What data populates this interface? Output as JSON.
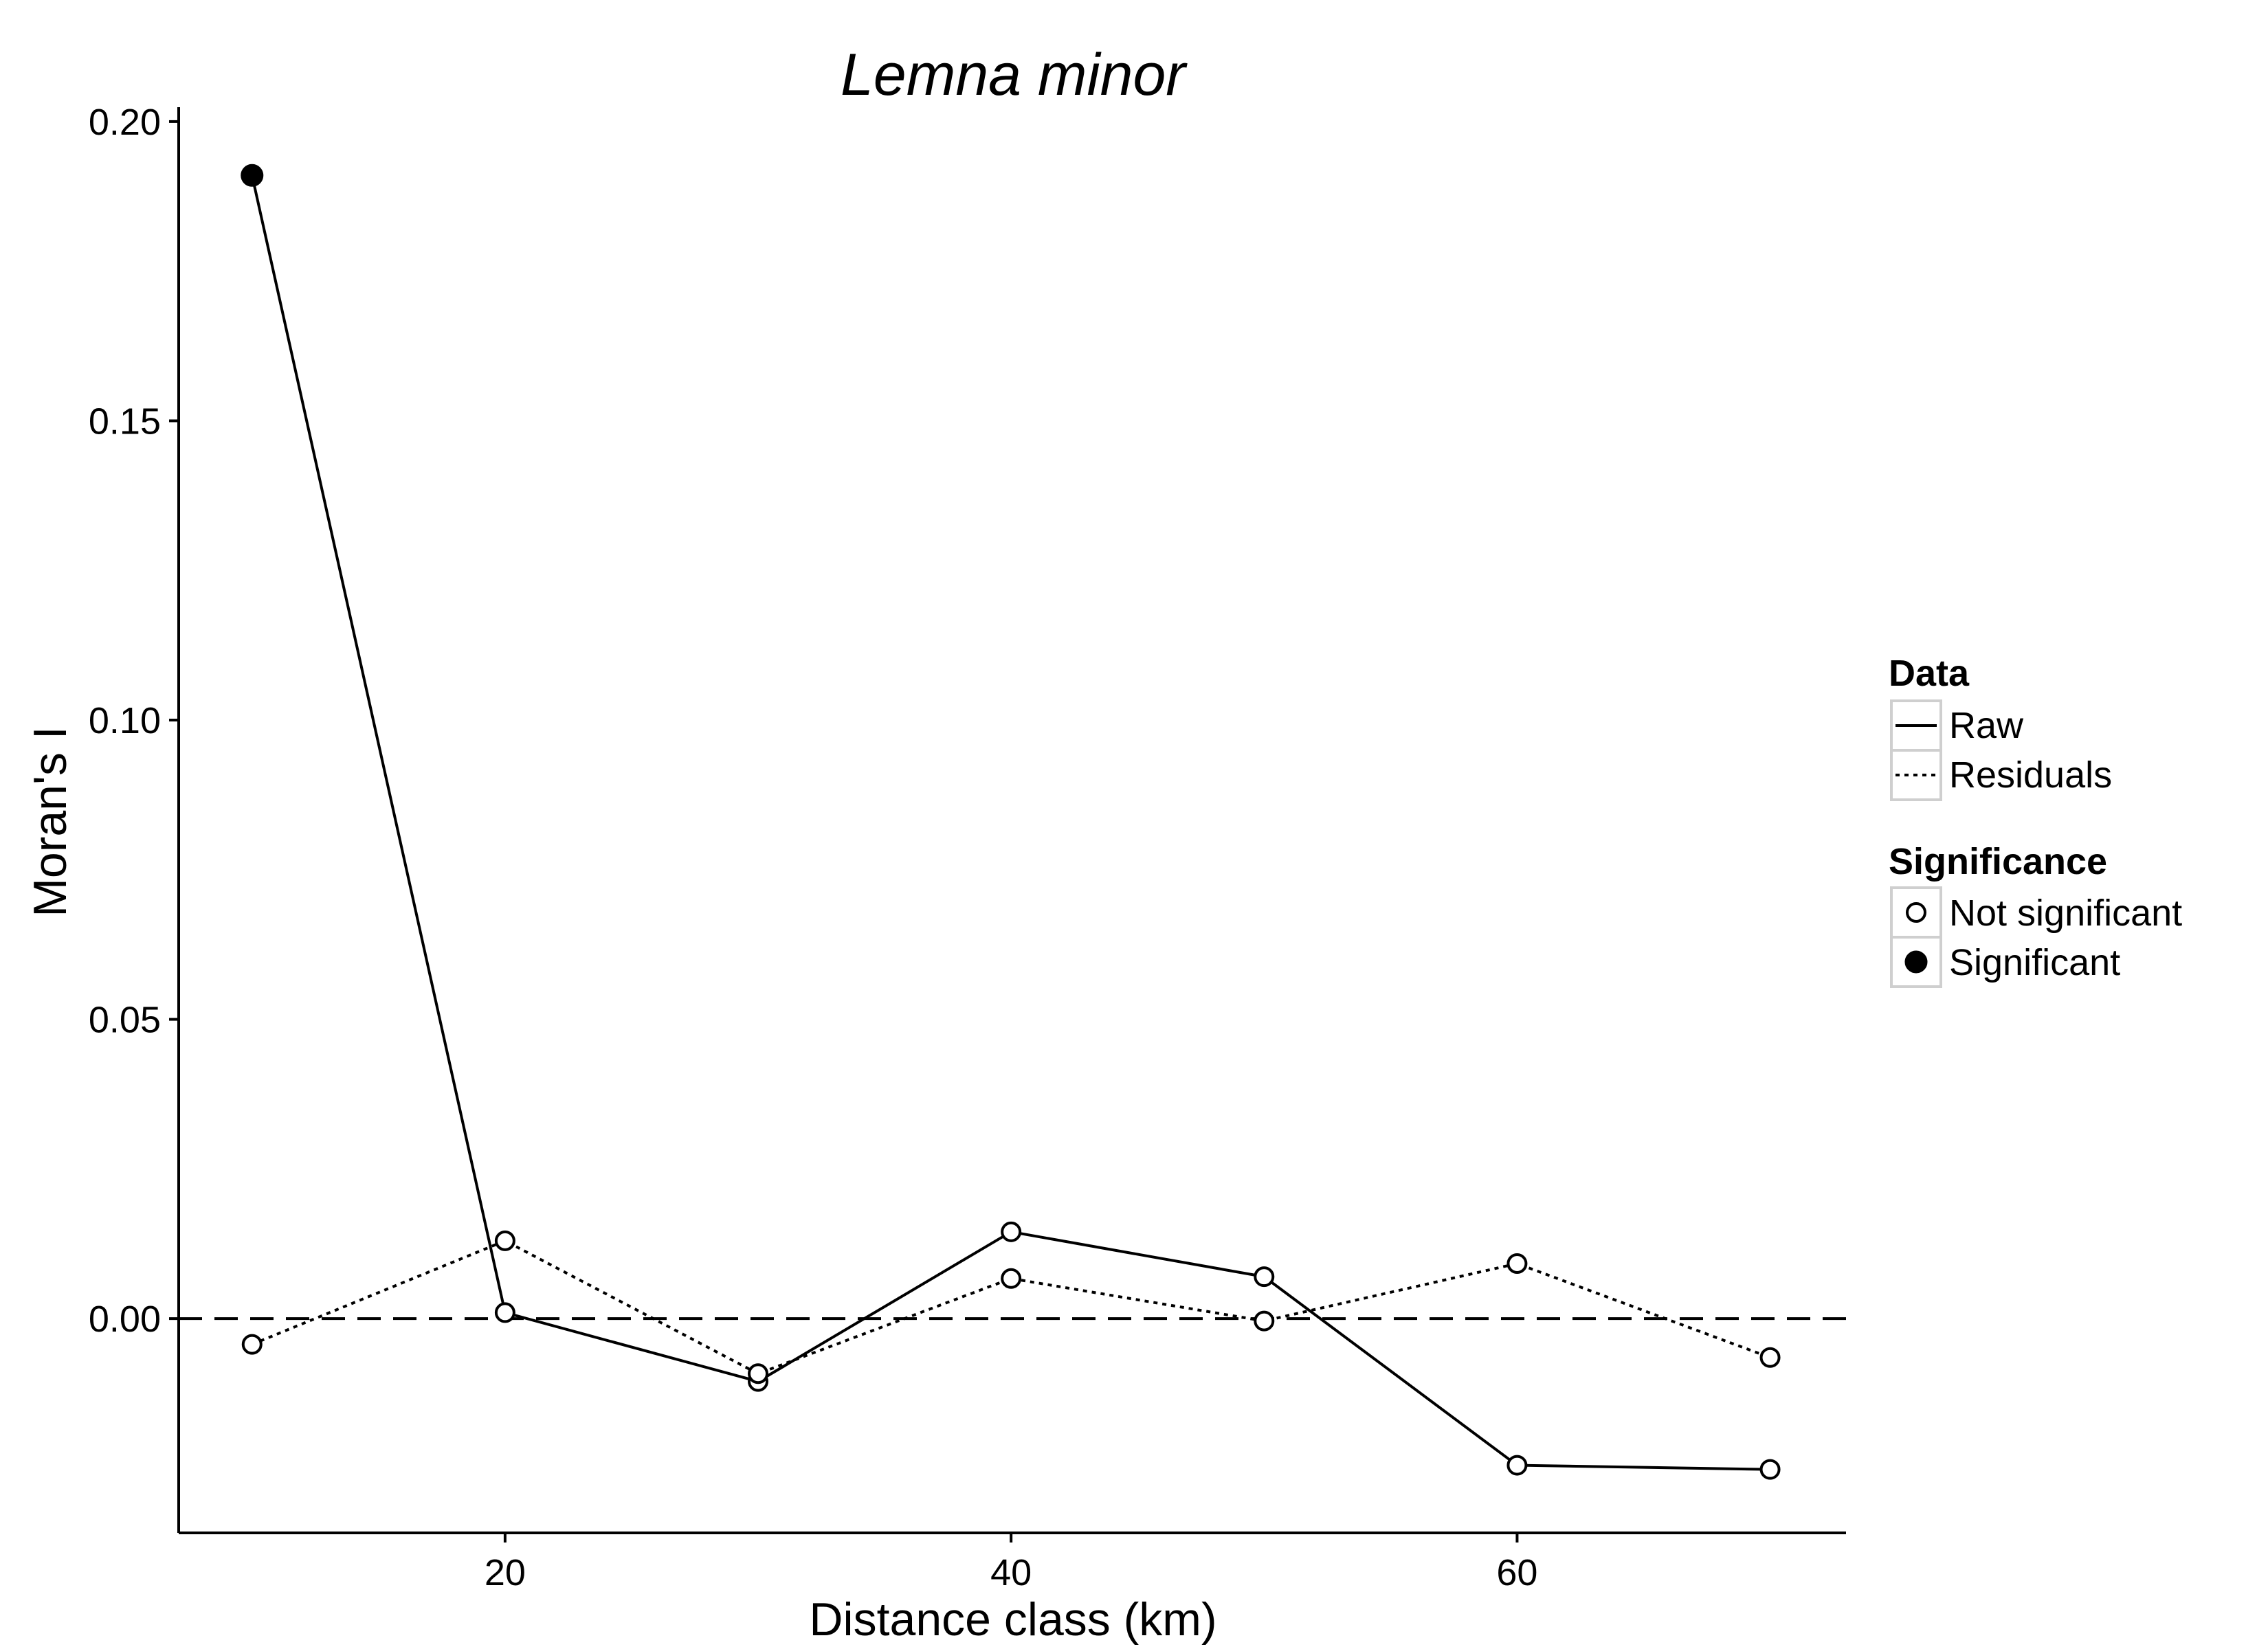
{
  "chart_data": {
    "type": "line",
    "title": "Lemna minor",
    "xlabel": "Distance class (km)",
    "ylabel": "Moran's I",
    "x_ticks": [
      20,
      40,
      60
    ],
    "x_tick_labels": [
      "20",
      "40",
      "60"
    ],
    "y_ticks": [
      0.0,
      0.05,
      0.1,
      0.15,
      0.2
    ],
    "y_tick_labels": [
      "0.00",
      "0.05",
      "0.10",
      "0.15",
      "0.20"
    ],
    "xlim": [
      7.1,
      73.0
    ],
    "ylim": [
      -0.0358,
      0.2024
    ],
    "reference_line": {
      "y": 0,
      "style": "dashed"
    },
    "grid": false,
    "legend_position": "right",
    "series": [
      {
        "name": "Raw",
        "style": "solid",
        "x": [
          10,
          20,
          30,
          40,
          50,
          60,
          70
        ],
        "y": [
          0.191,
          0.001,
          -0.0105,
          0.0145,
          0.007,
          -0.0245,
          -0.0252
        ],
        "significant": [
          true,
          false,
          false,
          false,
          false,
          false,
          false
        ]
      },
      {
        "name": "Residuals",
        "style": "dotted",
        "x": [
          10,
          20,
          30,
          40,
          50,
          60,
          70
        ],
        "y": [
          -0.0043,
          0.013,
          -0.0092,
          0.0067,
          -0.0004,
          0.0092,
          -0.0065
        ],
        "significant": [
          false,
          false,
          false,
          false,
          false,
          false,
          false
        ]
      }
    ]
  },
  "legend": {
    "data_title": "Data",
    "data_items": [
      "Raw",
      "Residuals"
    ],
    "significance_title": "Significance",
    "significance_items": [
      "Not significant",
      "Significant"
    ]
  }
}
